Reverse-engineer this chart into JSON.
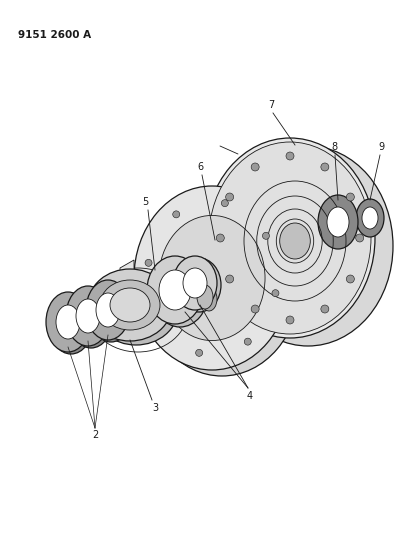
{
  "title": "9151 2600 A",
  "background_color": "#ffffff",
  "line_color": "#1a1a1a",
  "fig_width": 4.11,
  "fig_height": 5.33,
  "dpi": 100
}
